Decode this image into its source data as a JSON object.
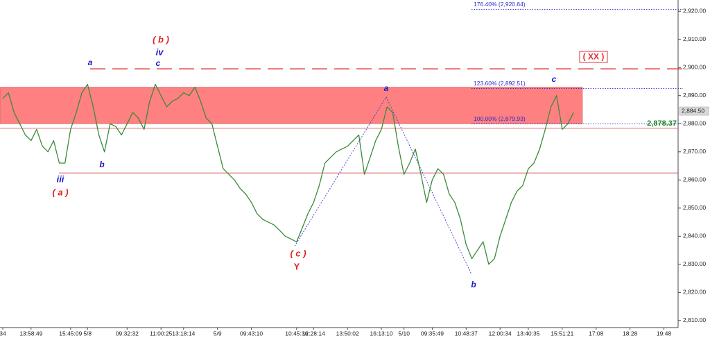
{
  "chart_data": {
    "type": "line",
    "color": "#3a8a3a",
    "categories": [
      "34",
      null,
      null,
      null,
      null,
      "13:58:49",
      null,
      null,
      null,
      null,
      null,
      null,
      "15:45:09",
      null,
      null,
      "5/8",
      null,
      null,
      null,
      null,
      null,
      null,
      "09:32:32",
      null,
      null,
      null,
      null,
      null,
      "11:00:25",
      null,
      null,
      null,
      "13:18:14",
      null,
      null,
      null,
      null,
      null,
      "5/9",
      null,
      null,
      null,
      null,
      null,
      "09:43:10",
      null,
      null,
      null,
      null,
      null,
      null,
      null,
      "10:45:36",
      null,
      null,
      "12:28:14",
      null,
      null,
      null,
      null,
      null,
      "13:50:02",
      null,
      null,
      null,
      null,
      null,
      "16:13:10",
      null,
      null,
      null,
      "5/10",
      null,
      null,
      null,
      null,
      "09:35:49",
      null,
      null,
      null,
      null,
      null,
      "10:48:37",
      null,
      null,
      null,
      null,
      null,
      "12:00:34",
      null,
      null,
      null,
      null,
      "13:40:35",
      null,
      null,
      null,
      null,
      null,
      "15:51:21",
      null,
      null,
      null,
      null,
      null,
      "17:08",
      null,
      null,
      null,
      null,
      null,
      "18:28",
      null,
      null,
      null,
      null,
      null,
      "19:48",
      null,
      null
    ],
    "values": [
      2889,
      2891,
      2884,
      2880,
      2876,
      2874,
      2878,
      2872,
      2870,
      2874,
      2866,
      2866,
      2878,
      2884,
      2891,
      2894,
      2886,
      2876,
      2870,
      2880,
      2879,
      2876,
      2880,
      2884,
      2882,
      2878,
      2888,
      2894,
      2890,
      2886,
      2888,
      2889,
      2891,
      2890,
      2893,
      2888,
      2882,
      2880,
      2872,
      2864,
      2862,
      2860,
      2857,
      2855,
      2852,
      2848,
      2846,
      2845,
      2844,
      2842,
      2840,
      2839,
      2838,
      2843,
      2848,
      2852,
      2858,
      2866,
      2868,
      2870,
      2871,
      2872,
      2874,
      2876,
      2862,
      2868,
      2874,
      2878,
      2886,
      2884,
      2872,
      2862,
      2866,
      2871,
      2862,
      2852,
      2860,
      2864,
      2862,
      2855,
      2852,
      2846,
      2837,
      2832,
      2835,
      2838,
      2830,
      2832,
      2840,
      2846,
      2852,
      2856,
      2858,
      2864,
      2866,
      2871,
      2878,
      2886,
      2890,
      2878,
      2880,
      2884,
      null,
      null,
      null,
      null,
      null,
      null,
      null,
      null,
      null,
      null,
      null,
      null,
      null,
      null,
      null,
      null,
      null,
      null
    ],
    "ylim": [
      2807.5,
      2924
    ],
    "yticks": [
      {
        "value": 2810,
        "label": "2,810.00"
      },
      {
        "value": 2820,
        "label": "2,820.00"
      },
      {
        "value": 2830,
        "label": "2,830.00"
      },
      {
        "value": 2840,
        "label": "2,840.00"
      },
      {
        "value": 2850,
        "label": "2,850.00"
      },
      {
        "value": 2860,
        "label": "2,860.00"
      },
      {
        "value": 2870,
        "label": "2,870.00"
      },
      {
        "value": 2880,
        "label": "2,880.00"
      },
      {
        "value": 2890,
        "label": "2,890.00"
      },
      {
        "value": 2900,
        "label": "2,900.00"
      },
      {
        "value": 2910,
        "label": "2,910.00"
      },
      {
        "value": 2920,
        "label": "2,920.00"
      }
    ],
    "zone": {
      "from": 2880,
      "to": 2893,
      "color": "#ff8080"
    },
    "fib_levels": [
      {
        "value": 2920.64,
        "label": "176.40% (2,920.64)"
      },
      {
        "value": 2892.51,
        "label": "123.60% (2,892.51)"
      },
      {
        "value": 2879.93,
        "label": "100.00% (2,879.93)"
      }
    ],
    "target_line": {
      "value": 2899.5,
      "label": "( XX )",
      "color": "#e03030"
    },
    "support_level": {
      "value": 2878.37,
      "label": "2,878.37",
      "color": "#1a8a1a",
      "line_color": "#d04040"
    },
    "low_level": {
      "value": 2862.5,
      "color": "#d04040"
    },
    "last_price": {
      "value": 2884.5,
      "label": "2,884.50"
    },
    "zigzag": [
      2836.5,
      2889.5,
      2826.5
    ],
    "annotations": [
      {
        "text": "a",
        "color": "#1a1acc"
      },
      {
        "text": "b",
        "color": "#1a1acc"
      },
      {
        "text": "iii",
        "color": "#1a1acc"
      },
      {
        "text": "( a )",
        "color": "#e02020"
      },
      {
        "text": "( b )",
        "color": "#e02020"
      },
      {
        "text": "iv",
        "color": "#1a1acc"
      },
      {
        "text": "c",
        "color": "#1a1acc"
      },
      {
        "text": "( c )",
        "color": "#e02020"
      },
      {
        "text": "Y",
        "color": "#e02020"
      },
      {
        "text": "a",
        "color": "#1a1acc"
      },
      {
        "text": "b",
        "color": "#1a1acc"
      },
      {
        "text": "c",
        "color": "#1a1acc"
      }
    ]
  }
}
